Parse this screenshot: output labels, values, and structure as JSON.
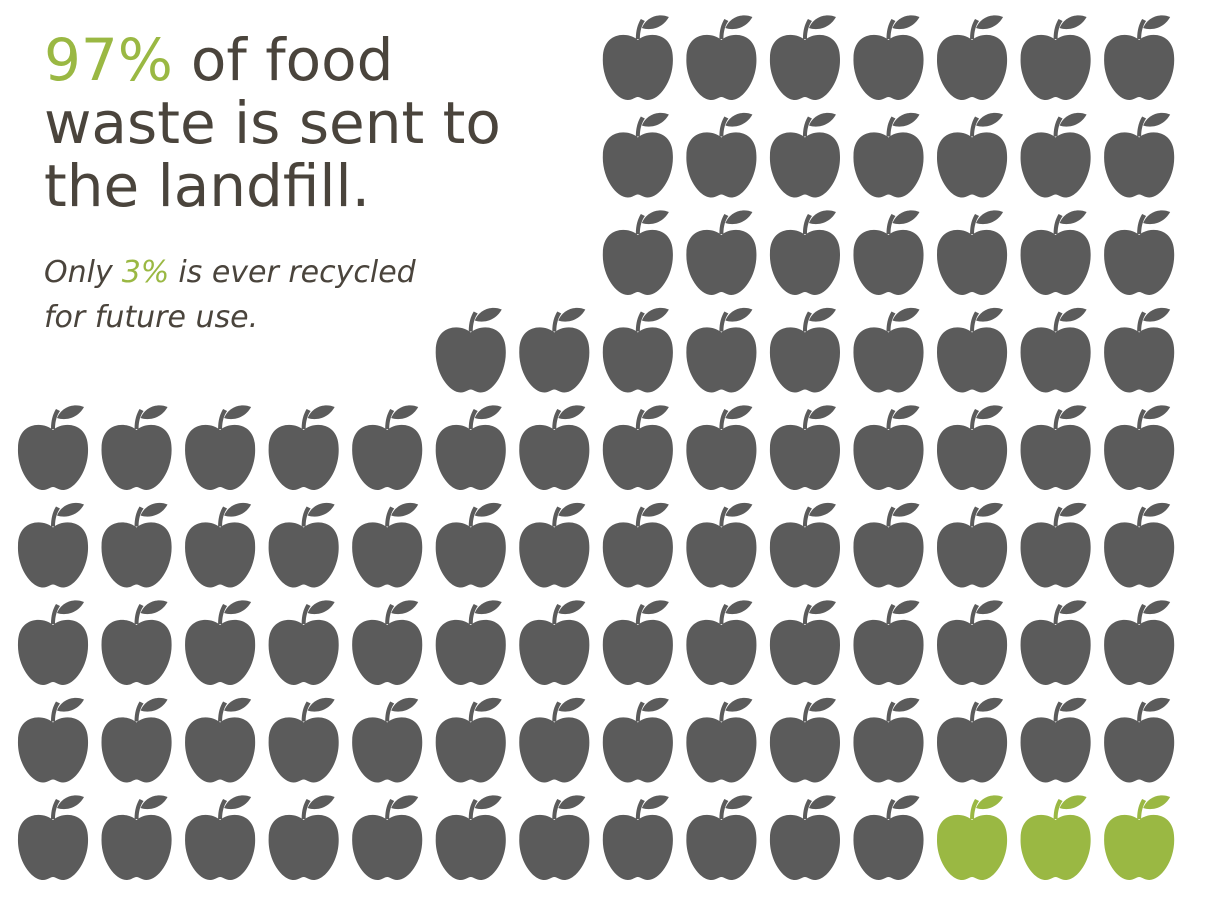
{
  "chart_data": {
    "type": "pictogram",
    "title_lines": [
      "of food",
      "waste is sent to",
      "the landfill."
    ],
    "subtitle_parts": [
      "Only",
      "is ever recycled",
      "for future use."
    ],
    "values": [
      97,
      3
    ],
    "value_labels": [
      "97%",
      "3%"
    ],
    "colors": [
      "#5b5b5b",
      "#9ab843"
    ],
    "text_color": "#4a443c"
  }
}
